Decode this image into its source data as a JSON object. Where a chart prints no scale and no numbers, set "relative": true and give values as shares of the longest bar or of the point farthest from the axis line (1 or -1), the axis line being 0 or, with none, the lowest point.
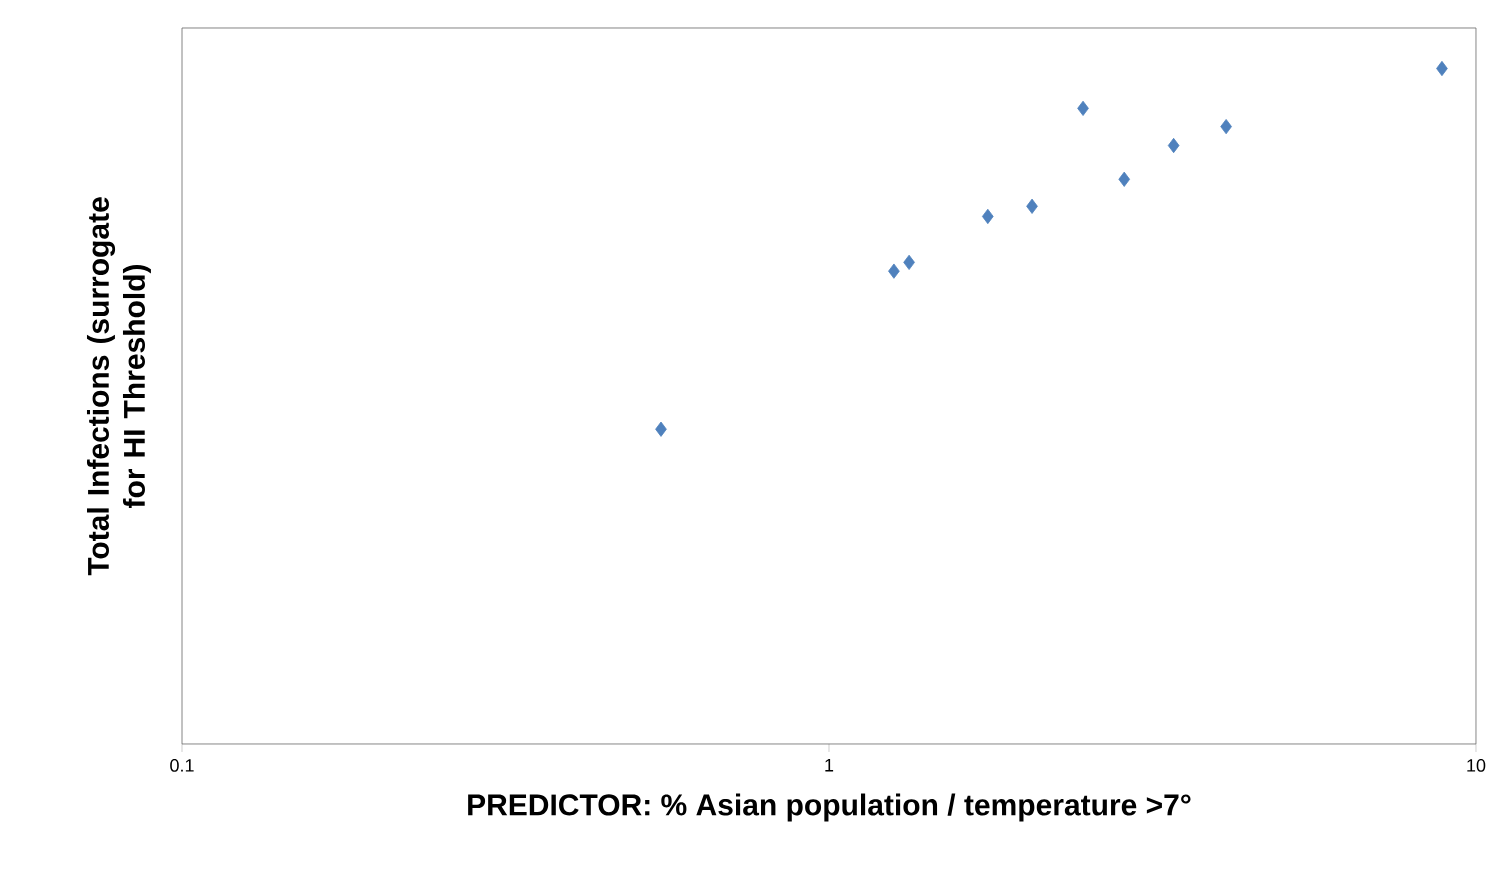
{
  "chart_data": {
    "type": "scatter",
    "relative": true,
    "log": "x",
    "marker": "diamond",
    "xlabel": "PREDICTOR: % Asian population / temperature >7°",
    "ylabel": "Total Infections (surrogate for HI Threshold)",
    "xlim": [
      0.1,
      10
    ],
    "xticks": [
      0.1,
      1,
      10
    ],
    "series": [
      {
        "color": "#4f81bd",
        "x": [
          0.55,
          1.26,
          1.33,
          1.76,
          2.06,
          2.47,
          2.86,
          3.41,
          4.11,
          8.86
        ],
        "values": [
          0.466,
          0.7,
          0.713,
          0.781,
          0.796,
          0.941,
          0.836,
          0.886,
          0.914,
          1.0
        ]
      }
    ]
  }
}
